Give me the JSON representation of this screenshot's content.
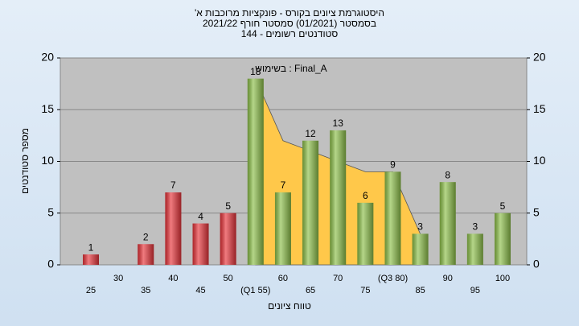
{
  "chart_data": {
    "type": "bar",
    "title": [
      "'היסטוגרמת ציונים בקורס - פונקציות מרוכבות א",
      "בסמסטר  (01/2021)  סמסטר חורף 2021/22",
      "סטודנטים רשומים - 144"
    ],
    "annotation": "בשימוש : Final_A",
    "x_label": "טווח ציונים",
    "y_label": "מספר סטודנטים",
    "categories": [
      "25",
      "30",
      "35",
      "40",
      "45",
      "50",
      "(Q1 55)",
      "60",
      "65",
      "70",
      "75",
      "(Q3 80)",
      "85",
      "90",
      "95",
      "100"
    ],
    "series": [
      {
        "type": "bar",
        "values": [
          1,
          0,
          2,
          7,
          4,
          5,
          18,
          7,
          12,
          13,
          6,
          9,
          3,
          8,
          3,
          5
        ],
        "colors": [
          "#e8343a",
          "#e8343a",
          "#e8343a",
          "#e8343a",
          "#e8343a",
          "#e8343a",
          "#8dc04a",
          "#8dc04a",
          "#8dc04a",
          "#8dc04a",
          "#8dc04a",
          "#8dc04a",
          "#8dc04a",
          "#8dc04a",
          "#8dc04a",
          "#8dc04a"
        ]
      },
      {
        "type": "area",
        "color": "#ffc84a",
        "values": [
          null,
          null,
          null,
          null,
          null,
          null,
          18,
          12,
          11,
          10,
          9,
          9,
          3,
          null,
          null,
          null
        ]
      }
    ],
    "ylim": [
      0,
      20
    ],
    "yticks": [
      0,
      5,
      10,
      15,
      20
    ],
    "y2lim": [
      0,
      20
    ],
    "y2ticks": [
      0,
      5,
      10,
      15,
      20
    ],
    "grid": true
  }
}
